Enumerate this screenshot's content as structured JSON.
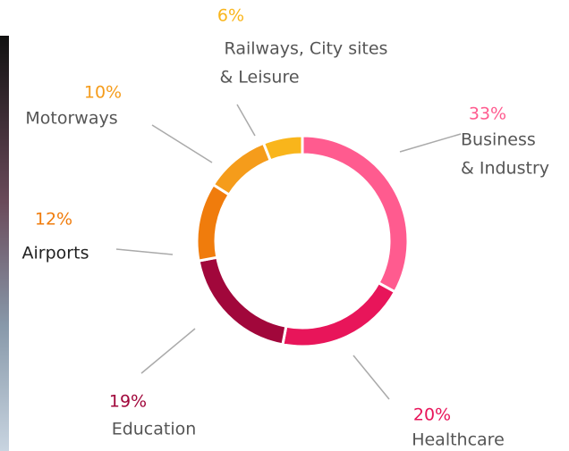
{
  "chart_data": {
    "type": "donut",
    "categories": [
      [
        "Business",
        "& Industry"
      ],
      [
        "Healthcare"
      ],
      [
        "Education"
      ],
      [
        "Airports"
      ],
      [
        "Motorways"
      ],
      [
        "Railways, City sites",
        "& Leisure"
      ]
    ],
    "values": [
      33,
      20,
      19,
      12,
      10,
      6
    ],
    "value_labels": [
      "33%",
      "20%",
      "19%",
      "12%",
      "10%",
      "6%"
    ],
    "colors": [
      "#ff5b8f",
      "#e8155a",
      "#a1073b",
      "#f07c0c",
      "#f59c1b",
      "#f9b51b"
    ]
  }
}
